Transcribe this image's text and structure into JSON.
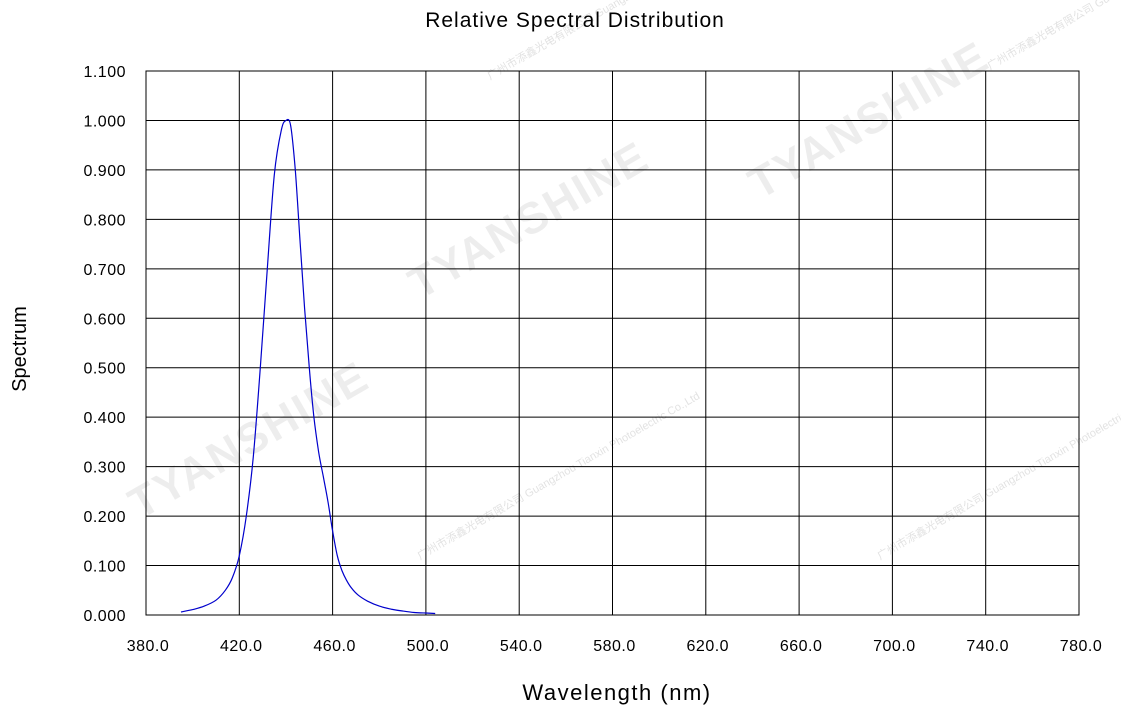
{
  "chart_data": {
    "type": "line",
    "title": "Relative Spectral Distribution",
    "xlabel": "Wavelength (nm)",
    "ylabel": "Spectrum",
    "xlim": [
      380,
      780
    ],
    "ylim": [
      0,
      1.1
    ],
    "grid": true,
    "x_ticks": [
      "380.0",
      "420.0",
      "460.0",
      "500.0",
      "540.0",
      "580.0",
      "620.0",
      "660.0",
      "700.0",
      "740.0",
      "780.0"
    ],
    "y_ticks": [
      "0.000",
      "0.100",
      "0.200",
      "0.300",
      "0.400",
      "0.500",
      "0.600",
      "0.700",
      "0.800",
      "0.900",
      "1.000",
      "1.100"
    ],
    "series": [
      {
        "color": "#0000cc",
        "x": [
          395,
          400,
          405,
          410,
          414,
          417,
          420,
          423,
          426,
          429,
          432,
          435,
          438,
          440,
          442,
          444,
          446,
          448,
          450,
          452,
          454,
          456,
          458,
          460,
          462,
          464,
          466,
          468,
          471,
          475,
          480,
          485,
          490,
          495,
          500,
          504
        ],
        "y": [
          0.006,
          0.011,
          0.018,
          0.03,
          0.05,
          0.075,
          0.12,
          0.2,
          0.32,
          0.5,
          0.7,
          0.89,
          0.98,
          1.0,
          0.99,
          0.9,
          0.76,
          0.62,
          0.5,
          0.4,
          0.33,
          0.28,
          0.23,
          0.17,
          0.12,
          0.09,
          0.07,
          0.055,
          0.04,
          0.028,
          0.018,
          0.012,
          0.008,
          0.005,
          0.004,
          0.003
        ]
      }
    ]
  },
  "watermark": {
    "brand": "TYANSHINE",
    "company_cn": "广州市添鑫光电有限公司",
    "company_en": "Guangzhou Tianxin Photoelectric Co.,Ltd"
  }
}
